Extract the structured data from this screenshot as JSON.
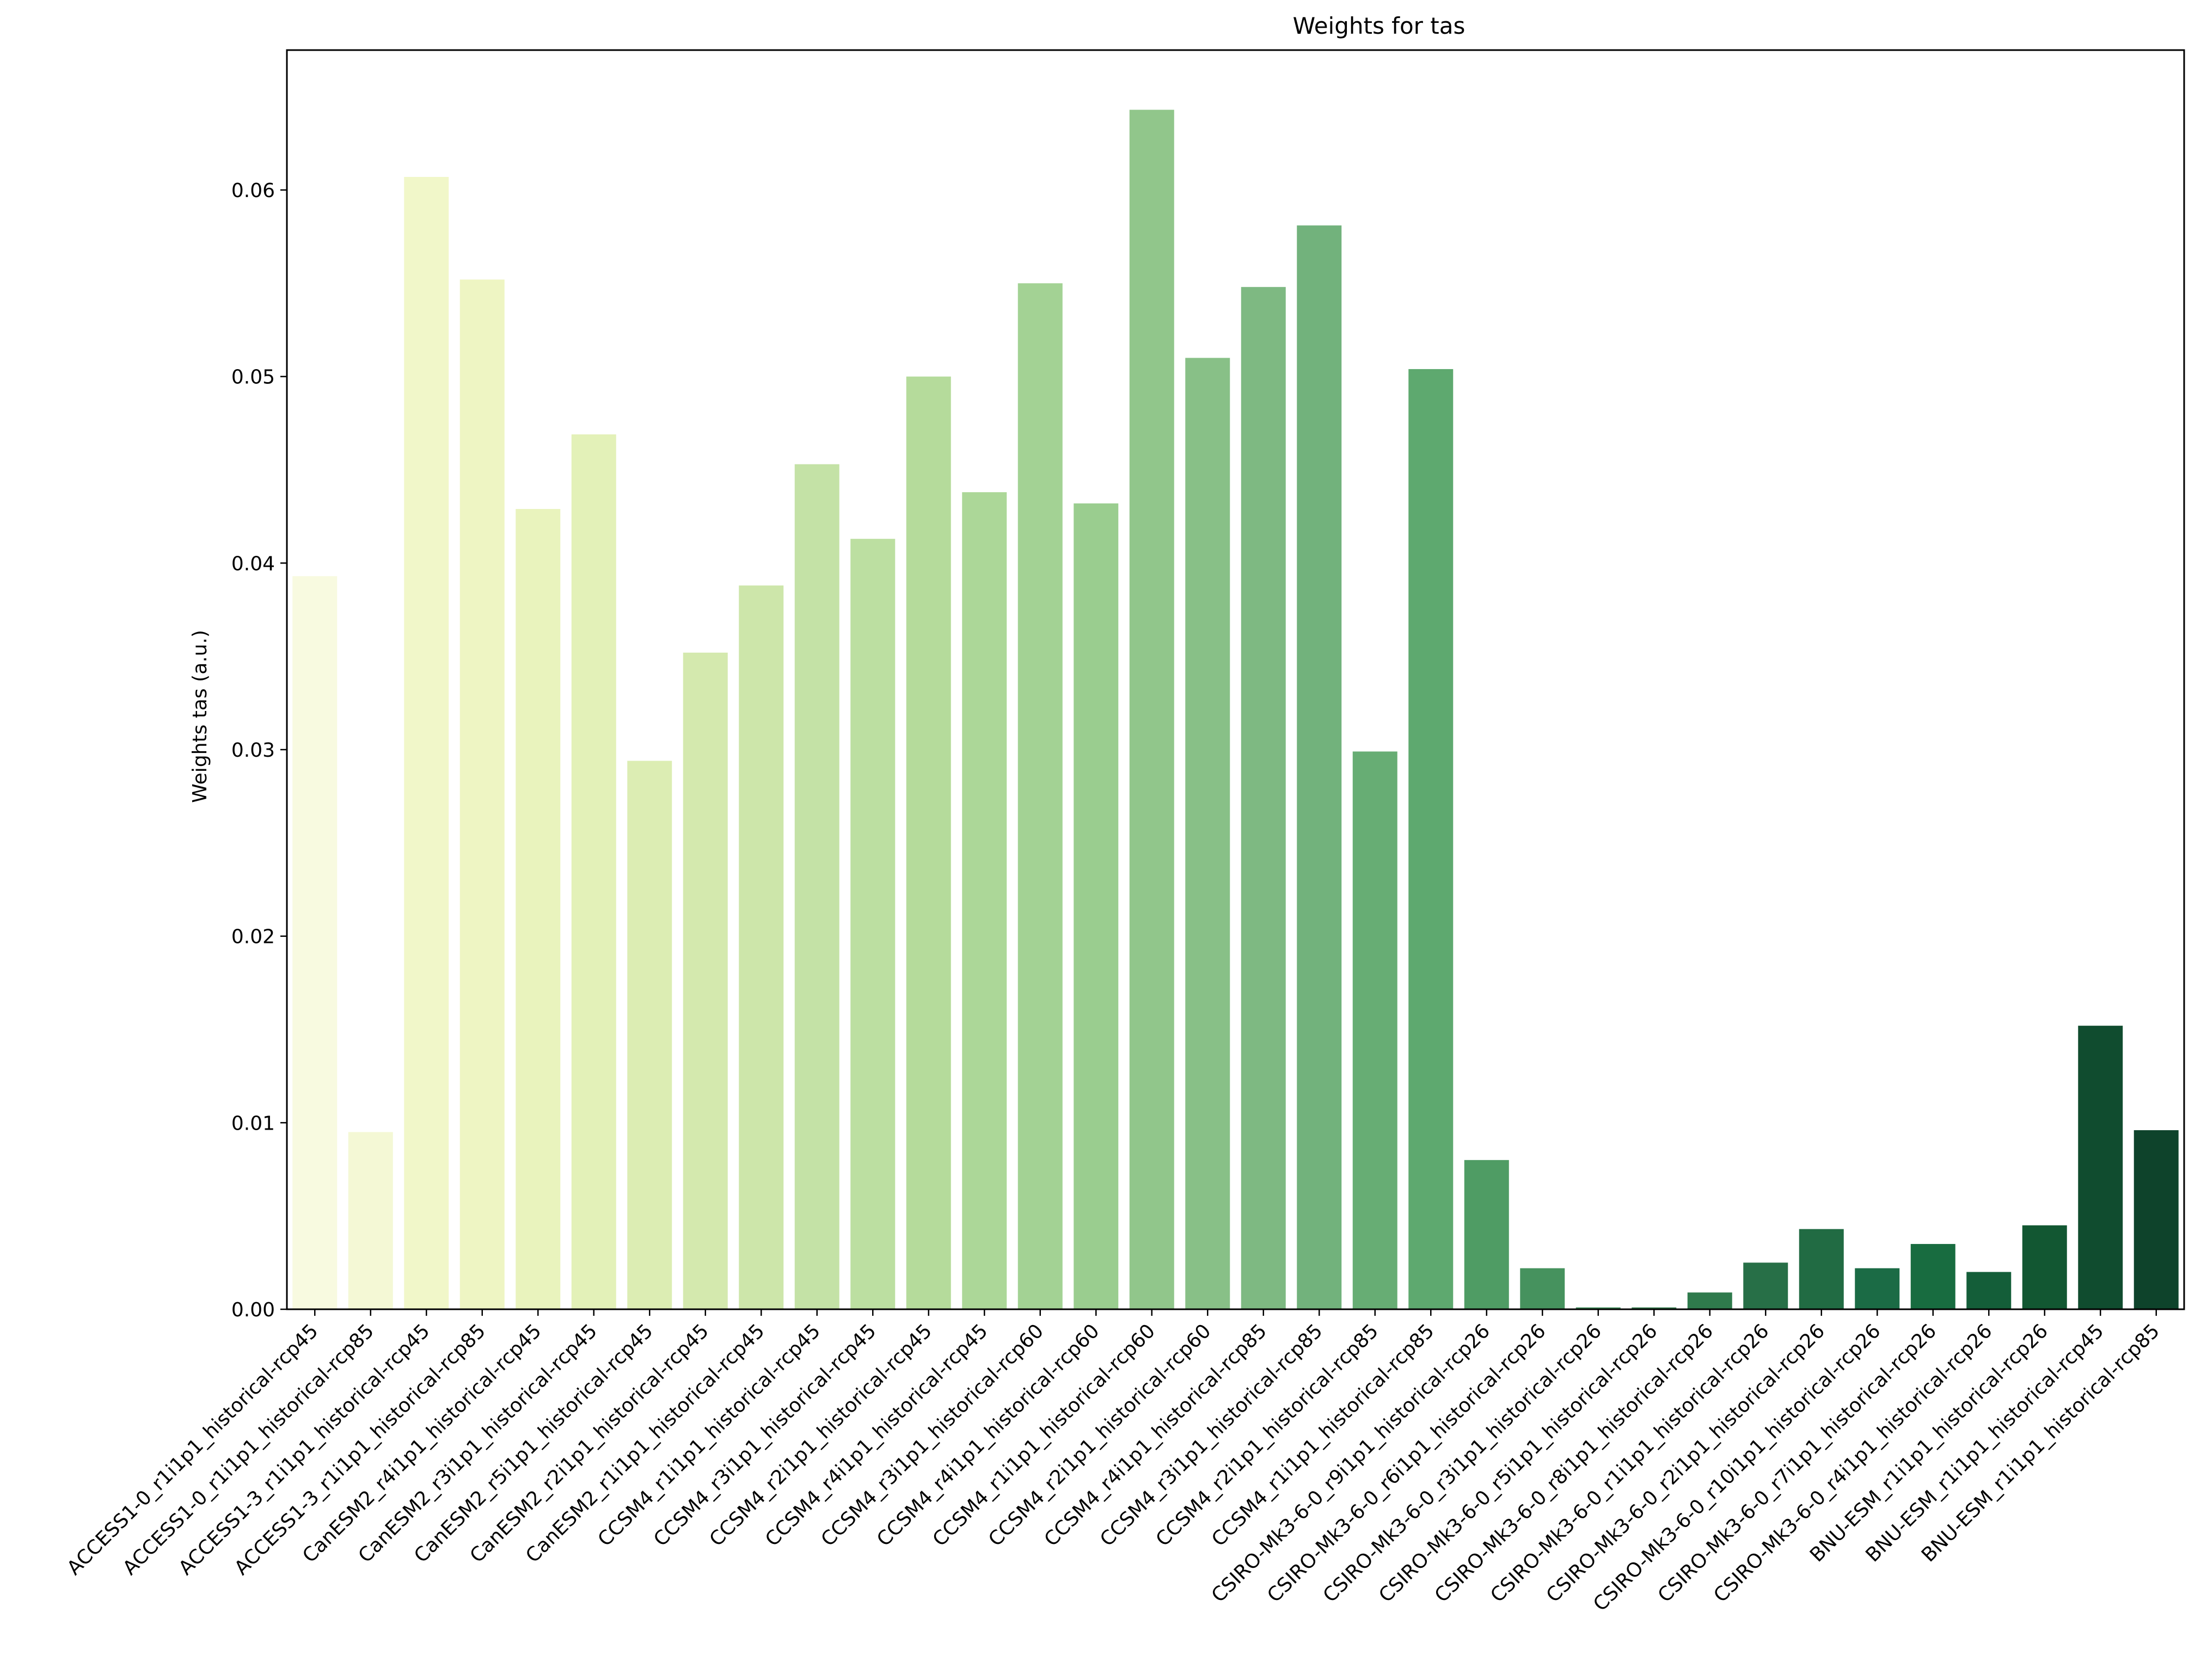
{
  "chart_data": {
    "type": "bar",
    "title": "Weights for tas",
    "xlabel": "",
    "ylabel": "Weights tas (a.u.)",
    "ylim": [
      0,
      0.0675
    ],
    "yticks": [
      0.0,
      0.01,
      0.02,
      0.03,
      0.04,
      0.05,
      0.06
    ],
    "ytick_labels": [
      "0.00",
      "0.01",
      "0.02",
      "0.03",
      "0.04",
      "0.05",
      "0.06"
    ],
    "grid": false,
    "categories": [
      "ACCESS1-0_r1i1p1_historical-rcp45",
      "ACCESS1-0_r1i1p1_historical-rcp85",
      "ACCESS1-3_r1i1p1_historical-rcp45",
      "ACCESS1-3_r1i1p1_historical-rcp85",
      "CanESM2_r4i1p1_historical-rcp45",
      "CanESM2_r3i1p1_historical-rcp45",
      "CanESM2_r5i1p1_historical-rcp45",
      "CanESM2_r2i1p1_historical-rcp45",
      "CanESM2_r1i1p1_historical-rcp45",
      "CCSM4_r1i1p1_historical-rcp45",
      "CCSM4_r3i1p1_historical-rcp45",
      "CCSM4_r2i1p1_historical-rcp45",
      "CCSM4_r4i1p1_historical-rcp45",
      "CCSM4_r3i1p1_historical-rcp60",
      "CCSM4_r4i1p1_historical-rcp60",
      "CCSM4_r1i1p1_historical-rcp60",
      "CCSM4_r2i1p1_historical-rcp60",
      "CCSM4_r4i1p1_historical-rcp85",
      "CCSM4_r3i1p1_historical-rcp85",
      "CCSM4_r2i1p1_historical-rcp85",
      "CCSM4_r1i1p1_historical-rcp85",
      "CSIRO-Mk3-6-0_r9i1p1_historical-rcp26",
      "CSIRO-Mk3-6-0_r6i1p1_historical-rcp26",
      "CSIRO-Mk3-6-0_r3i1p1_historical-rcp26",
      "CSIRO-Mk3-6-0_r5i1p1_historical-rcp26",
      "CSIRO-Mk3-6-0_r8i1p1_historical-rcp26",
      "CSIRO-Mk3-6-0_r1i1p1_historical-rcp26",
      "CSIRO-Mk3-6-0_r2i1p1_historical-rcp26",
      "CSIRO-Mk3-6-0_r10i1p1_historical-rcp26",
      "CSIRO-Mk3-6-0_r7i1p1_historical-rcp26",
      "CSIRO-Mk3-6-0_r4i1p1_historical-rcp26",
      "BNU-ESM_r1i1p1_historical-rcp26",
      "BNU-ESM_r1i1p1_historical-rcp45",
      "BNU-ESM_r1i1p1_historical-rcp85"
    ],
    "values": [
      0.0393,
      0.0095,
      0.0607,
      0.0552,
      0.0429,
      0.0469,
      0.0294,
      0.0352,
      0.0388,
      0.0453,
      0.0413,
      0.05,
      0.0438,
      0.055,
      0.0432,
      0.0643,
      0.051,
      0.0548,
      0.0581,
      0.0299,
      0.0504,
      0.008,
      0.0022,
      0.0001,
      0.0001,
      0.0009,
      0.0025,
      0.0043,
      0.0022,
      0.0035,
      0.002,
      0.0045,
      0.0152,
      0.0096
    ],
    "colors": [
      "#f8fae0",
      "#f4f8d5",
      "#f1f7c9",
      "#eef5c3",
      "#e9f3bd",
      "#e3f1b8",
      "#dcedb3",
      "#d4e9ae",
      "#cde6aa",
      "#c4e2a6",
      "#bcdfa1",
      "#b5db9b",
      "#acd798",
      "#a3d294",
      "#9acd8f",
      "#91c68b",
      "#88c087",
      "#7eb982",
      "#72b27c",
      "#67ad74",
      "#5ea96f",
      "#4f9c64",
      "#46925e",
      "#3f8c5a",
      "#377d4f",
      "#2f7a4c",
      "#276f47",
      "#216b43",
      "#1b6b45",
      "#186c40",
      "#145e39",
      "#125732",
      "#104c2f",
      "#0e432b"
    ]
  }
}
